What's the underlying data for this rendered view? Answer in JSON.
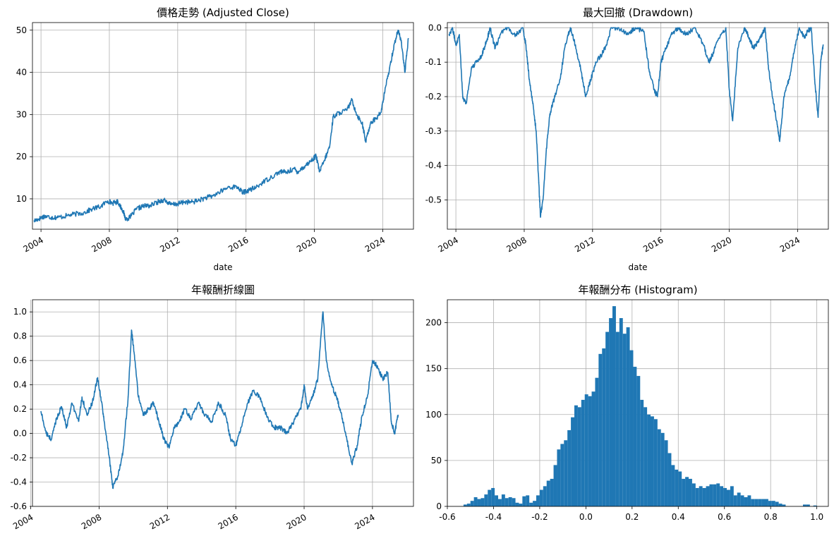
{
  "chart_data": [
    {
      "type": "line",
      "title": "價格走勢 (Adjusted Close)",
      "xlabel": "date",
      "ylabel": "",
      "x_ticks": [
        "2004",
        "2008",
        "2012",
        "2016",
        "2020",
        "2024"
      ],
      "y_ticks": [
        "10",
        "20",
        "30",
        "40",
        "50"
      ],
      "xlim": [
        2003.5,
        2025.8
      ],
      "ylim": [
        2.8,
        51.8
      ],
      "grid": true,
      "color": "#1f77b4",
      "series": [
        {
          "x": [
            2003.6,
            2003.9,
            2004.2,
            2004.6,
            2005.0,
            2005.5,
            2006.0,
            2006.5,
            2007.0,
            2007.5,
            2007.9,
            2008.2,
            2008.5,
            2008.8,
            2008.95,
            2009.2,
            2009.6,
            2010.0,
            2010.4,
            2010.8,
            2011.2,
            2011.6,
            2012.0,
            2012.4,
            2012.8,
            2013.2,
            2013.6,
            2014.0,
            2014.5,
            2015.0,
            2015.5,
            2015.8,
            2016.2,
            2016.6,
            2017.0,
            2017.5,
            2018.0,
            2018.4,
            2018.8,
            2019.0,
            2019.4,
            2019.8,
            2020.1,
            2020.3,
            2020.6,
            2020.9,
            2021.1,
            2021.5,
            2021.9,
            2022.2,
            2022.5,
            2022.8,
            2023.0,
            2023.3,
            2023.6,
            2023.9,
            2024.1,
            2024.4,
            2024.7,
            2024.9,
            2025.1,
            2025.3,
            2025.5
          ],
          "y": [
            4.8,
            5.3,
            5.9,
            5.6,
            5.6,
            6.0,
            6.4,
            6.7,
            7.6,
            8.2,
            9.5,
            9.0,
            9.3,
            7.2,
            5.2,
            5.6,
            7.6,
            8.3,
            8.4,
            9.2,
            9.8,
            8.6,
            8.8,
            9.3,
            9.2,
            9.6,
            10.2,
            10.6,
            11.7,
            12.8,
            12.8,
            11.5,
            12.1,
            12.7,
            14.0,
            15.2,
            16.5,
            16.3,
            17.2,
            16.4,
            17.6,
            19.0,
            20.2,
            16.4,
            19.2,
            22.5,
            29.5,
            30.5,
            31.0,
            33.4,
            29.8,
            28.0,
            23.5,
            28.2,
            29.0,
            30.5,
            35.0,
            41.0,
            47.0,
            50.0,
            47.0,
            40.0,
            48.0
          ]
        }
      ]
    },
    {
      "type": "line",
      "title": "最大回撤 (Drawdown)",
      "xlabel": "date",
      "ylabel": "",
      "x_ticks": [
        "2004",
        "2008",
        "2012",
        "2016",
        "2020",
        "2024"
      ],
      "y_ticks": [
        "0.0",
        "-0.1",
        "-0.2",
        "-0.3",
        "-0.4",
        "-0.5"
      ],
      "xlim": [
        2003.5,
        2025.8
      ],
      "ylim": [
        -0.585,
        0.015
      ],
      "grid": true,
      "color": "#1f77b4",
      "series": [
        {
          "x": [
            2003.6,
            2003.8,
            2004.0,
            2004.2,
            2004.4,
            2004.6,
            2004.9,
            2005.2,
            2005.5,
            2005.8,
            2006.0,
            2006.3,
            2006.6,
            2007.0,
            2007.5,
            2007.9,
            2008.1,
            2008.3,
            2008.5,
            2008.7,
            2008.85,
            2008.95,
            2009.1,
            2009.3,
            2009.5,
            2009.8,
            2010.1,
            2010.4,
            2010.7,
            2011.0,
            2011.3,
            2011.6,
            2011.9,
            2012.2,
            2012.5,
            2012.8,
            2013.1,
            2013.5,
            2014.0,
            2014.5,
            2015.0,
            2015.3,
            2015.6,
            2015.8,
            2016.0,
            2016.3,
            2016.6,
            2017.0,
            2017.5,
            2018.0,
            2018.5,
            2018.8,
            2019.0,
            2019.4,
            2019.8,
            2020.0,
            2020.2,
            2020.5,
            2020.9,
            2021.1,
            2021.4,
            2021.7,
            2021.9,
            2022.1,
            2022.3,
            2022.6,
            2022.8,
            2022.95,
            2023.2,
            2023.5,
            2023.8,
            2024.1,
            2024.4,
            2024.6,
            2024.8,
            2025.0,
            2025.2,
            2025.35,
            2025.5
          ],
          "y": [
            -0.02,
            0.0,
            -0.05,
            -0.02,
            -0.2,
            -0.22,
            -0.12,
            -0.1,
            -0.08,
            -0.04,
            0.0,
            -0.06,
            -0.02,
            0.0,
            -0.02,
            0.0,
            -0.05,
            -0.15,
            -0.22,
            -0.3,
            -0.45,
            -0.55,
            -0.5,
            -0.35,
            -0.25,
            -0.2,
            -0.15,
            -0.05,
            0.0,
            -0.05,
            -0.12,
            -0.2,
            -0.15,
            -0.1,
            -0.08,
            -0.05,
            0.0,
            0.0,
            -0.02,
            0.0,
            -0.01,
            -0.12,
            -0.18,
            -0.2,
            -0.1,
            -0.06,
            -0.02,
            0.0,
            -0.02,
            0.0,
            -0.05,
            -0.1,
            -0.08,
            -0.03,
            0.0,
            -0.18,
            -0.27,
            -0.06,
            0.0,
            -0.02,
            -0.06,
            -0.04,
            -0.02,
            0.0,
            -0.12,
            -0.22,
            -0.28,
            -0.33,
            -0.2,
            -0.15,
            -0.07,
            0.0,
            -0.03,
            -0.01,
            0.0,
            -0.15,
            -0.26,
            -0.1,
            -0.05
          ]
        }
      ]
    },
    {
      "type": "line",
      "title": "年報酬折線圖",
      "xlabel": "",
      "ylabel": "",
      "x_ticks": [
        "2004",
        "2008",
        "2012",
        "2016",
        "2020",
        "2024"
      ],
      "y_ticks": [
        "1.0",
        "0.8",
        "0.6",
        "0.4",
        "0.2",
        "0.0",
        "-0.2",
        "-0.4",
        "-0.6"
      ],
      "xlim": [
        2004.1,
        2026.4
      ],
      "ylim": [
        -0.6,
        1.1
      ],
      "grid": true,
      "color": "#1f77b4",
      "series": [
        {
          "x": [
            2004.6,
            2004.9,
            2005.2,
            2005.5,
            2005.8,
            2006.1,
            2006.4,
            2006.8,
            2007.0,
            2007.3,
            2007.6,
            2007.9,
            2008.1,
            2008.3,
            2008.6,
            2008.8,
            2009.1,
            2009.4,
            2009.7,
            2009.9,
            2010.1,
            2010.3,
            2010.6,
            2010.9,
            2011.2,
            2011.5,
            2011.8,
            2012.1,
            2012.4,
            2012.7,
            2013.0,
            2013.4,
            2013.8,
            2014.2,
            2014.6,
            2015.0,
            2015.4,
            2015.7,
            2016.0,
            2016.3,
            2016.7,
            2017.0,
            2017.4,
            2017.8,
            2018.2,
            2018.6,
            2019.0,
            2019.4,
            2019.8,
            2020.0,
            2020.2,
            2020.5,
            2020.8,
            2021.1,
            2021.3,
            2021.6,
            2021.9,
            2022.2,
            2022.5,
            2022.8,
            2023.1,
            2023.4,
            2023.7,
            2024.0,
            2024.3,
            2024.6,
            2024.9,
            2025.1,
            2025.3,
            2025.5
          ],
          "y": [
            0.18,
            0.0,
            -0.05,
            0.12,
            0.22,
            0.05,
            0.25,
            0.1,
            0.3,
            0.15,
            0.25,
            0.45,
            0.3,
            0.1,
            -0.2,
            -0.45,
            -0.35,
            -0.15,
            0.3,
            0.85,
            0.6,
            0.3,
            0.15,
            0.2,
            0.25,
            0.1,
            -0.05,
            -0.12,
            0.05,
            0.1,
            0.2,
            0.12,
            0.25,
            0.15,
            0.1,
            0.25,
            0.15,
            -0.05,
            -0.1,
            0.05,
            0.25,
            0.35,
            0.3,
            0.15,
            0.05,
            0.05,
            0.0,
            0.1,
            0.2,
            0.4,
            0.2,
            0.3,
            0.45,
            1.0,
            0.6,
            0.4,
            0.3,
            0.15,
            -0.05,
            -0.25,
            -0.1,
            0.15,
            0.3,
            0.6,
            0.55,
            0.45,
            0.5,
            0.1,
            0.0,
            0.15
          ]
        }
      ]
    },
    {
      "type": "bar",
      "title": "年報酬分布 (Histogram)",
      "xlabel": "",
      "ylabel": "",
      "x_ticks": [
        "-0.6",
        "-0.4",
        "-0.2",
        "0.0",
        "0.2",
        "0.4",
        "0.6",
        "0.8",
        "1.0"
      ],
      "y_ticks": [
        "0",
        "50",
        "100",
        "150",
        "200"
      ],
      "xlim": [
        -0.6,
        1.05
      ],
      "ylim": [
        0,
        225
      ],
      "grid": true,
      "color": "#1f77b4",
      "bin_start": -0.53,
      "bin_width": 0.015,
      "counts": [
        2,
        3,
        6,
        10,
        8,
        9,
        13,
        18,
        20,
        12,
        8,
        13,
        9,
        10,
        9,
        4,
        3,
        11,
        12,
        4,
        6,
        12,
        18,
        22,
        28,
        30,
        45,
        62,
        68,
        72,
        83,
        97,
        110,
        108,
        116,
        122,
        120,
        125,
        140,
        166,
        172,
        190,
        205,
        218,
        190,
        205,
        188,
        195,
        170,
        152,
        142,
        116,
        108,
        100,
        98,
        95,
        84,
        80,
        72,
        58,
        45,
        40,
        38,
        30,
        32,
        30,
        25,
        20,
        22,
        20,
        22,
        24,
        24,
        25,
        22,
        20,
        18,
        22,
        12,
        15,
        12,
        10,
        12,
        8,
        8,
        8,
        8,
        8,
        6,
        6,
        5,
        3,
        2,
        0,
        0,
        0,
        0,
        0,
        2,
        2,
        0,
        1,
        0
      ]
    }
  ]
}
